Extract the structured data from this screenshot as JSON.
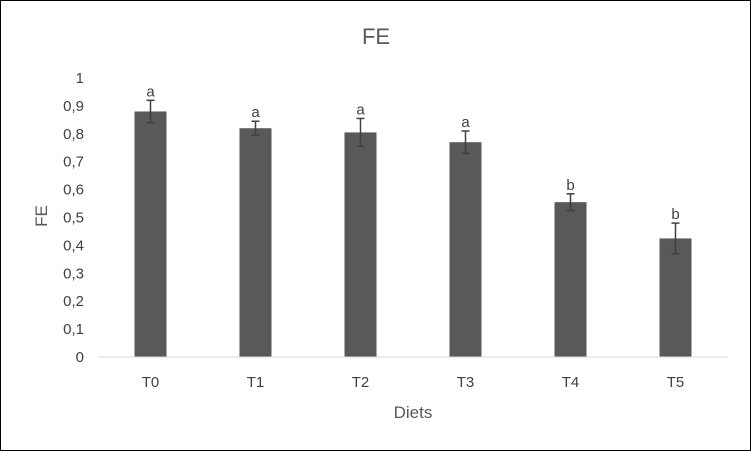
{
  "chart_data": {
    "type": "bar",
    "title": "FE",
    "xlabel": "Diets",
    "ylabel": "FE",
    "categories": [
      "T0",
      "T1",
      "T2",
      "T3",
      "T4",
      "T5"
    ],
    "values": [
      0.88,
      0.82,
      0.805,
      0.77,
      0.555,
      0.425
    ],
    "error": [
      0.04,
      0.025,
      0.05,
      0.04,
      0.03,
      0.055
    ],
    "significance_letters": [
      "a",
      "a",
      "a",
      "a",
      "b",
      "b"
    ],
    "ylim": [
      0,
      1
    ],
    "yticks": [
      0,
      0.1,
      0.2,
      0.3,
      0.4,
      0.5,
      0.6,
      0.7,
      0.8,
      0.9,
      1
    ],
    "ytick_labels": [
      "0",
      "0,1",
      "0,2",
      "0,3",
      "0,4",
      "0,5",
      "0,6",
      "0,7",
      "0,8",
      "0,9",
      "1"
    ],
    "grid": false,
    "legend": "none",
    "colors": {
      "bar": "#595959",
      "axis": "#d9d9d9",
      "errorbar": "#404040"
    }
  }
}
